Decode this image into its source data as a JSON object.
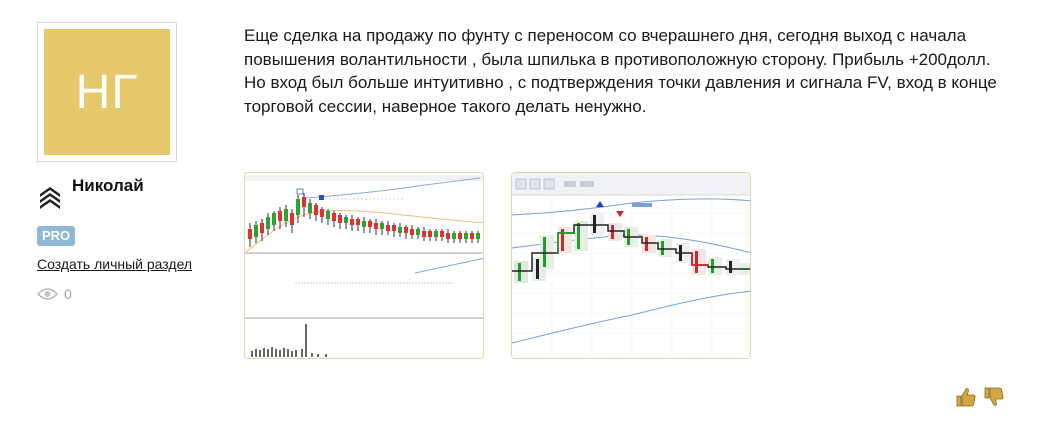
{
  "author": {
    "avatar_initials": "НГ",
    "avatar_color": "#e6c96a",
    "name": "Николай",
    "badge": "PRO",
    "create_section_link": "Создать личный раздел",
    "views_count": "0"
  },
  "post": {
    "text": "Еще сделка на продажу по фунту с переносом со вчерашнего дня, сегодня выход с начала повышения волантильности , была шпилька в противоположную сторону. Прибыль +200долл. Но вход был больше интуитивно , с подтверждения точки давления и сигнала FV, вход в конце торговой сессии, наверное такого делать ненужно."
  },
  "attachments": [
    {
      "type": "chart-screenshot",
      "icon": "chart-thumbnail"
    },
    {
      "type": "chart-screenshot",
      "icon": "chart-thumbnail"
    }
  ],
  "actions": {
    "like_icon": "thumb-up-icon",
    "dislike_icon": "thumb-down-icon",
    "vote_color": "#d4a545"
  }
}
